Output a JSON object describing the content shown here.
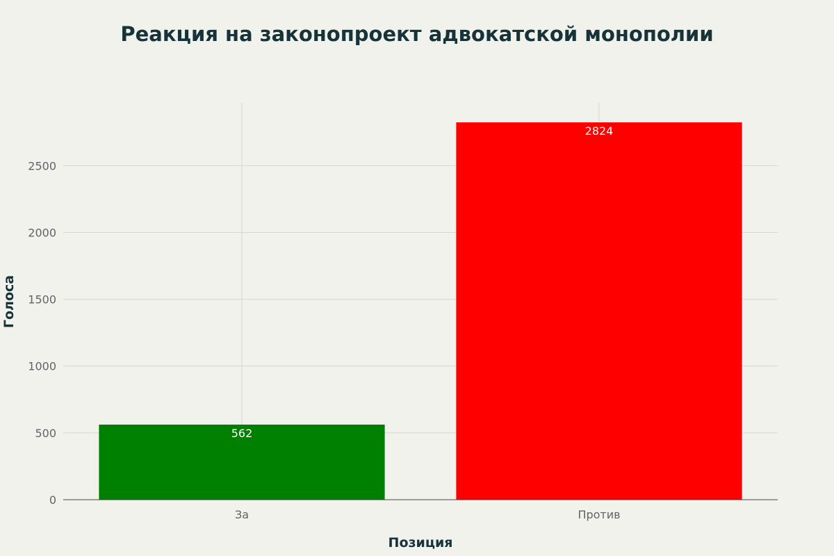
{
  "chart_data": {
    "type": "bar",
    "title": "Реакция на законопроект адвокатской монополии",
    "xlabel": "Позиция",
    "ylabel": "Голоса",
    "categories": [
      "За",
      "Против"
    ],
    "values": [
      562,
      2824
    ],
    "data_labels": [
      "562",
      "2824"
    ],
    "colors": [
      "#008000",
      "#ff0000"
    ],
    "ylim": [
      0,
      2970
    ],
    "yticks": [
      0,
      500,
      1000,
      1500,
      2000,
      2500
    ],
    "grid": true,
    "legend": "none"
  },
  "style": {
    "background": "#f2f2ed",
    "title_color": "#163339",
    "tick_color": "#5f6468",
    "grid_color": "#d6d6d2",
    "axis_color": "#444444"
  }
}
